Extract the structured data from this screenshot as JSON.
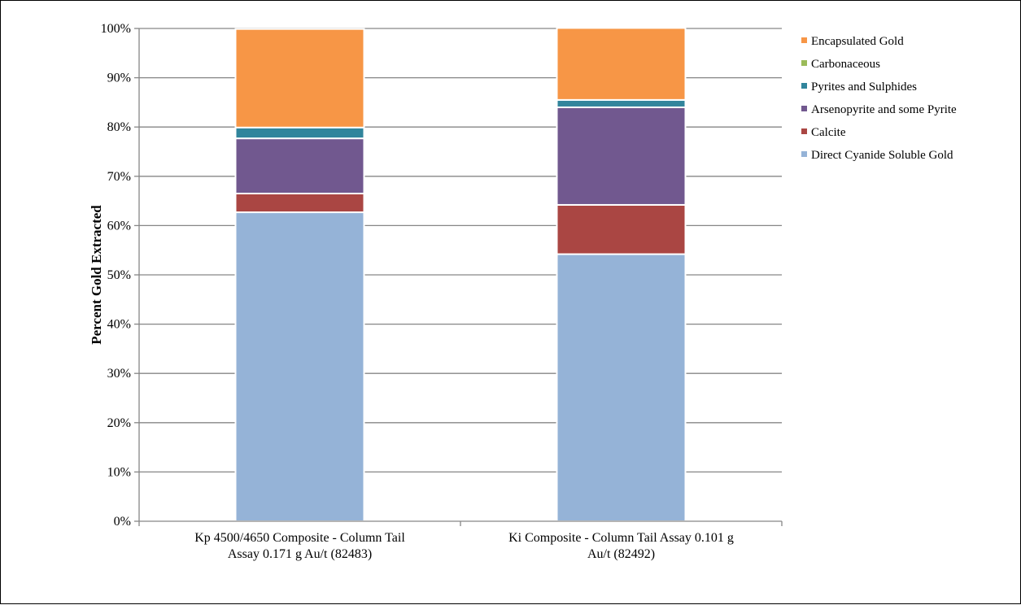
{
  "chart_data": {
    "type": "bar",
    "stacked": true,
    "categories": [
      [
        "Kp 4500/4650 Composite - Column Tail",
        "Assay 0.171 g Au/t (82483)"
      ],
      [
        "Ki Composite - Column Tail Assay 0.101 g",
        "Au/t (82492)"
      ]
    ],
    "series": [
      {
        "name": "Direct Cyanide Soluble Gold",
        "color": "#95B3D7",
        "values": [
          62.7,
          54.2
        ]
      },
      {
        "name": "Calcite",
        "color": "#AA4643",
        "values": [
          3.8,
          10.0
        ]
      },
      {
        "name": "Arsenopyrite and some Pyrite",
        "color": "#71588F",
        "values": [
          11.2,
          19.8
        ]
      },
      {
        "name": "Pyrites and Sulphides",
        "color": "#31859C",
        "values": [
          2.2,
          1.5
        ]
      },
      {
        "name": "Carbonaceous",
        "color": "#9BBB59",
        "values": [
          0,
          0
        ]
      },
      {
        "name": "Encapsulated Gold",
        "color": "#F79646",
        "values": [
          20.0,
          14.6
        ]
      }
    ],
    "ylabel": "Percent Gold Extracted",
    "ylim": [
      0,
      100
    ],
    "yticks": [
      "0%",
      "10%",
      "20%",
      "30%",
      "40%",
      "50%",
      "60%",
      "70%",
      "80%",
      "90%",
      "100%"
    ],
    "grid": true,
    "legend": "right"
  }
}
